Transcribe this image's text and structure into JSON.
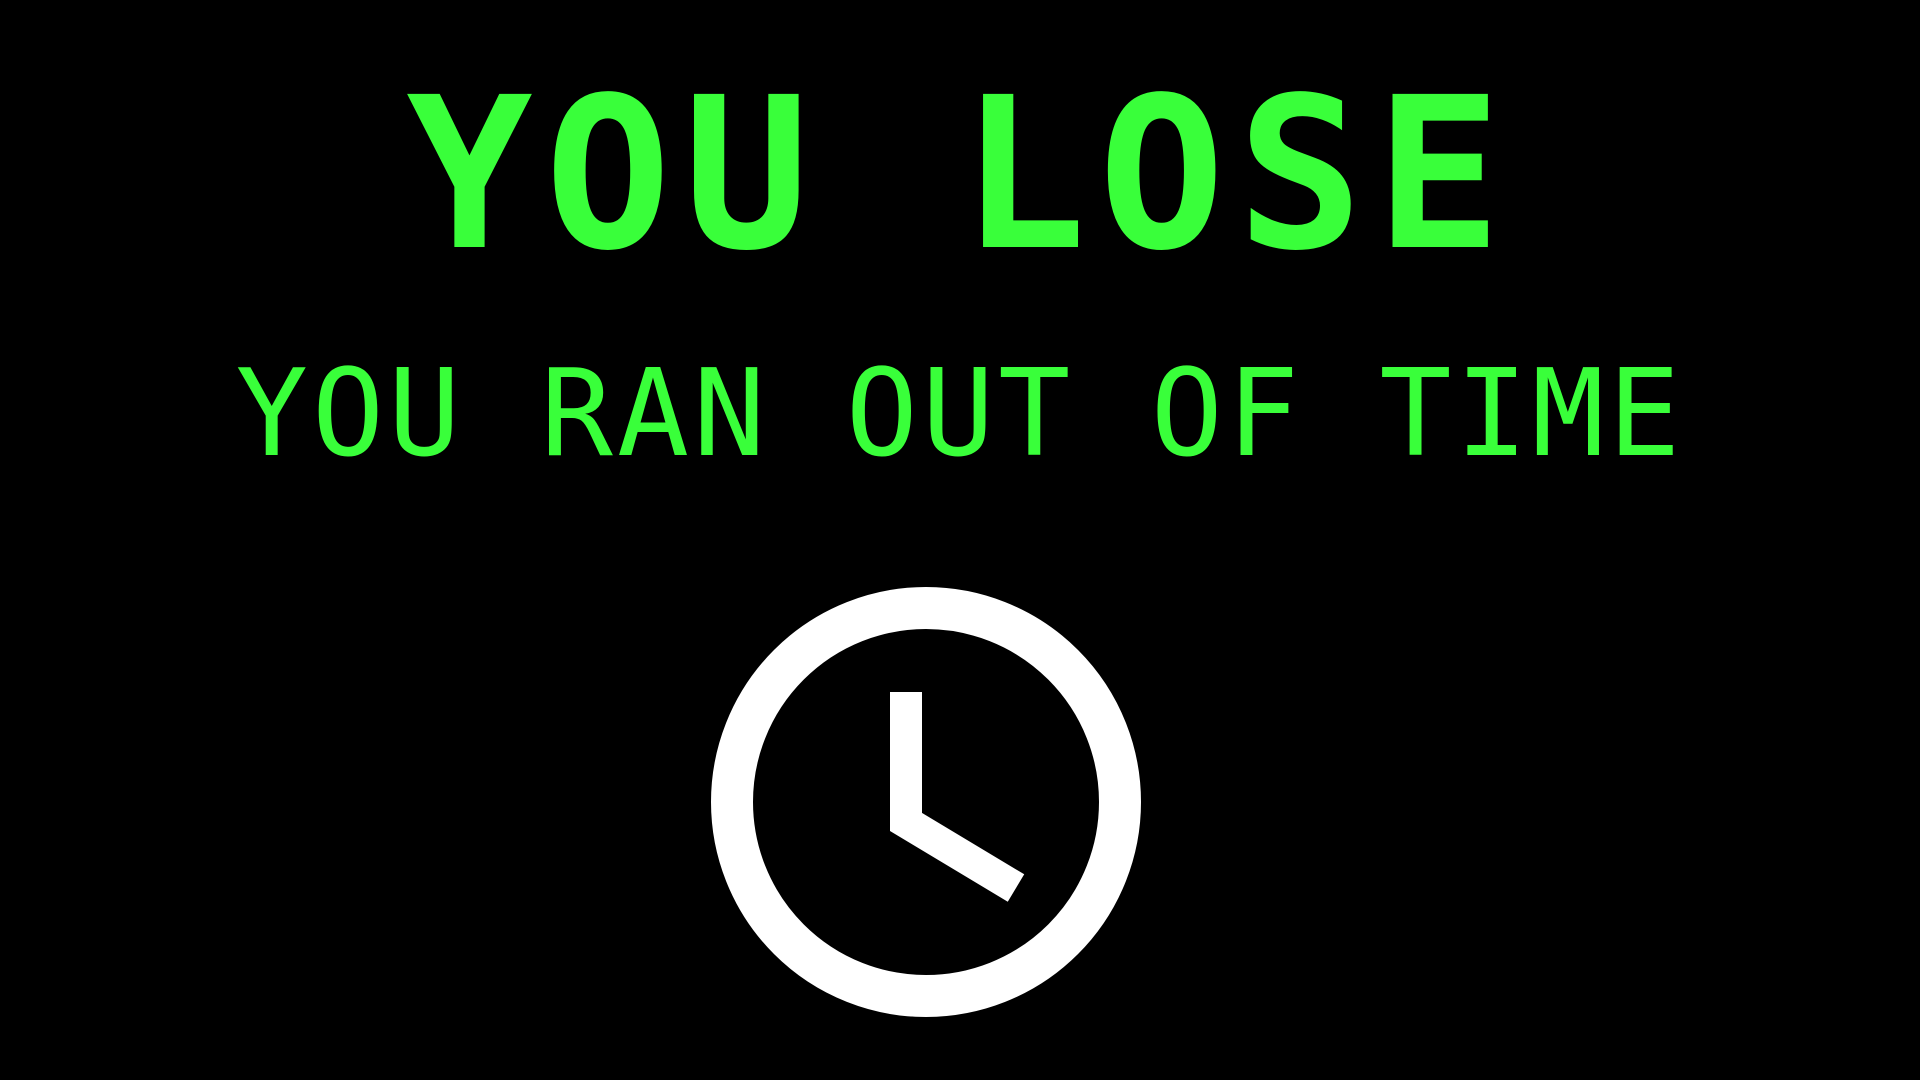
{
  "screen": {
    "headline": "YOU LOSE",
    "subline": "YOU RAN OUT OF TIME",
    "icon": "clock-icon"
  },
  "colors": {
    "background": "#000000",
    "text": "#39ff3a",
    "icon": "#ffffff"
  }
}
